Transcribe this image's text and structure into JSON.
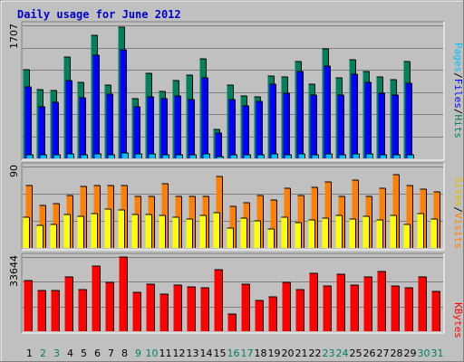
{
  "chart_data": {
    "type": "bar",
    "title": "Daily usage for June 2012",
    "categories": [
      "1",
      "2",
      "3",
      "4",
      "5",
      "6",
      "7",
      "8",
      "9",
      "10",
      "11",
      "12",
      "13",
      "14",
      "15",
      "16",
      "17",
      "18",
      "19",
      "20",
      "21",
      "22",
      "23",
      "24",
      "25",
      "26",
      "27",
      "28",
      "29",
      "30",
      "31"
    ],
    "weekend_days": [
      "2",
      "3",
      "9",
      "10",
      "16",
      "17",
      "23",
      "24",
      "30",
      "31"
    ],
    "panels": {
      "top": {
        "max_label": "1707",
        "ylim": [
          0,
          1707
        ],
        "series": [
          {
            "name": "Hits",
            "color": "#00805c",
            "values": [
              1140,
              880,
              870,
              1300,
              970,
              1580,
              940,
              1680,
              770,
              1090,
              860,
              1000,
              1070,
              1280,
              370,
              940,
              800,
              790,
              1060,
              1050,
              1240,
              950,
              1410,
              1030,
              1270,
              1110,
              1040,
              1010,
              1240,
              0,
              0
            ]
          },
          {
            "name": "Files",
            "color": "#0000ff",
            "values": [
              920,
              660,
              720,
              1000,
              780,
              1320,
              830,
              1390,
              660,
              790,
              770,
              800,
              750,
              1030,
              320,
              750,
              670,
              730,
              950,
              840,
              1110,
              810,
              1180,
              810,
              1080,
              970,
              840,
              810,
              960,
              0,
              0
            ]
          },
          {
            "name": "Pages",
            "color": "#00c0ff",
            "values": [
              50,
              48,
              45,
              58,
              44,
              60,
              50,
              75,
              55,
              60,
              50,
              52,
              48,
              55,
              28,
              48,
              52,
              48,
              55,
              52,
              58,
              50,
              62,
              48,
              60,
              55,
              50,
              52,
              50,
              0,
              0
            ]
          }
        ]
      },
      "mid": {
        "max_label": "90",
        "ylim": [
          0,
          90
        ],
        "series": [
          {
            "name": "Visits",
            "color": "#ff8000",
            "values": [
              69,
              47,
              49,
              58,
              68,
              69,
              69,
              69,
              57,
              57,
              71,
              57,
              57,
              57,
              79,
              46,
              50,
              58,
              53,
              66,
              58,
              67,
              73,
              57,
              75,
              57,
              66,
              81,
              69,
              65,
              62
            ]
          },
          {
            "name": "Sites",
            "color": "#ffff00",
            "values": [
              34,
              25,
              26,
              37,
              35,
              38,
              43,
              42,
              37,
              37,
              36,
              34,
              32,
              36,
              39,
              22,
              33,
              30,
              21,
              34,
              28,
              31,
              33,
              36,
              32,
              35,
              31,
              36,
              26,
              38,
              32
            ]
          }
        ]
      },
      "bottom": {
        "max_label": "33644",
        "ylim": [
          0,
          33644
        ],
        "series": [
          {
            "name": "KBytes",
            "color": "#ff0000",
            "values": [
              23000,
              18500,
              18500,
              24500,
              19000,
              29500,
              22000,
              33600,
              17500,
              21500,
              17000,
              21000,
              20000,
              19500,
              27700,
              8000,
              21500,
              13800,
              15500,
              22000,
              19000,
              26200,
              20500,
              26000,
              21000,
              24800,
              27200,
              20500,
              19500,
              24800,
              18000
            ]
          }
        ]
      }
    }
  }
}
